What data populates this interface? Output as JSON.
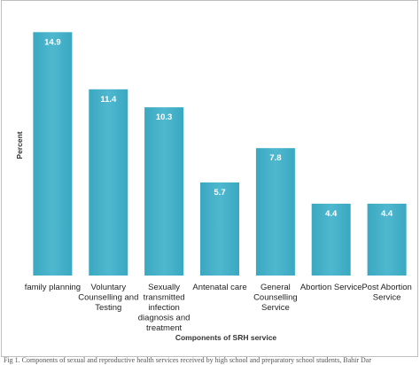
{
  "chart_data": {
    "type": "bar",
    "categories": [
      "family planning",
      "Voluntary Counselling and Testing",
      "Sexually transmitted infection diagnosis and treatment",
      "Antenatal care",
      "General Counselling Service",
      "Abortion Service",
      "Post Abortion Service"
    ],
    "category_lines": [
      [
        "family planning"
      ],
      [
        "Voluntary",
        "Counselling and",
        "Testing"
      ],
      [
        "Sexually",
        "transmitted",
        "infection",
        "diagnosis and",
        "treatment"
      ],
      [
        "Antenatal care"
      ],
      [
        "General",
        "Counselling",
        "Service"
      ],
      [
        "Abortion Service"
      ],
      [
        "Post Abortion",
        "Service"
      ]
    ],
    "values": [
      14.9,
      11.4,
      10.3,
      5.7,
      7.8,
      4.4,
      4.4
    ],
    "data_labels": [
      "14.9",
      "11.4",
      "10.3",
      "5.7",
      "7.8",
      "4.4",
      "4.4"
    ],
    "xlabel": "Components of SRH service",
    "ylabel": "Percent",
    "ylim": [
      0,
      16
    ],
    "grid": false,
    "bar_color": "#3aa8c1",
    "bar_color_light": "#4fb8cf"
  },
  "caption": "Fig 1. Components of sexual and reproductive health services received by high school and preparatory school students, Bahir Dar"
}
